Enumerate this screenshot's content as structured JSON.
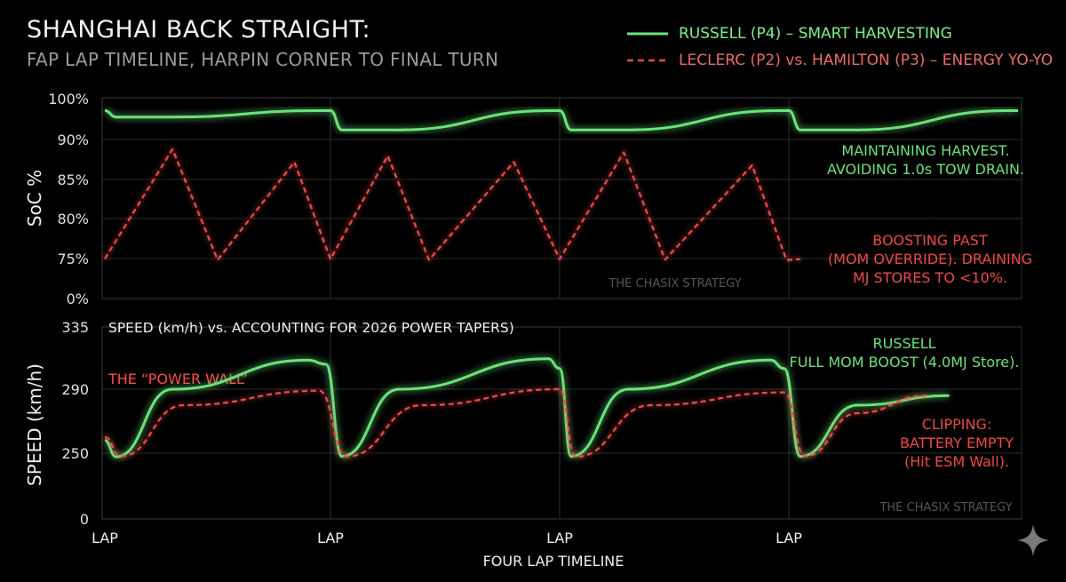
{
  "header": {
    "title": "SHANGHAI BACK STRAIGHT:",
    "subtitle": "FAP LAP TIMELINE, HARPIN CORNER TO FINAL TURN"
  },
  "legend": [
    {
      "label": "RUSSELL (P4) – SMART HARVESTING",
      "color": "#6be37a",
      "style": "solid"
    },
    {
      "label": "LECLERC (P2) vs. HAMILTON (P3) – ENERGY YO-YO",
      "color": "#f04848",
      "style": "dashed"
    }
  ],
  "chart_data": [
    {
      "type": "line",
      "panel": "top",
      "ylabel": "SoC %",
      "y_ticks": [
        "100%",
        "90%",
        "85%",
        "80%",
        "75%",
        "0%"
      ],
      "grid": true,
      "series": [
        {
          "name": "RUSSELL (P4) – SMART HARVESTING",
          "color": "#6be37a",
          "style": "solid",
          "points": [
            [
              0,
              98
            ],
            [
              0.05,
              97
            ],
            [
              0.3,
              97
            ],
            [
              0.95,
              98
            ],
            [
              1.0,
              98
            ],
            [
              1.05,
              95
            ],
            [
              1.3,
              95
            ],
            [
              1.95,
              98
            ],
            [
              2.0,
              98
            ],
            [
              2.05,
              95
            ],
            [
              2.3,
              95
            ],
            [
              2.95,
              98
            ],
            [
              3.0,
              98
            ],
            [
              3.05,
              95
            ],
            [
              3.3,
              95
            ],
            [
              3.95,
              98
            ],
            [
              4.0,
              98
            ]
          ]
        },
        {
          "name": "LECLERC (P2) vs. HAMILTON (P3) – ENERGY YO-YO",
          "color": "#f04848",
          "style": "dashed",
          "points": [
            [
              0,
              74.5
            ],
            [
              0.3,
              92
            ],
            [
              0.5,
              72.5
            ],
            [
              0.84,
              90
            ],
            [
              1.0,
              74
            ],
            [
              1.25,
              91
            ],
            [
              1.43,
              72.5
            ],
            [
              1.8,
              90
            ],
            [
              2.0,
              74
            ],
            [
              2.28,
              91.5
            ],
            [
              2.46,
              73
            ],
            [
              2.84,
              89.5
            ],
            [
              2.99,
              72
            ],
            [
              3.05,
              74
            ]
          ]
        }
      ],
      "annotations": [
        {
          "lines": [
            "MAINTAINING HARVEST.",
            "AVOIDING 1.0s TOW DRAIN."
          ],
          "color": "#6be37a"
        },
        {
          "lines": [
            "BOOSTING PAST",
            "(MOM OVERRIDE). DRAINING",
            "MJ STORES TO <10%."
          ],
          "color": "#f04848"
        }
      ],
      "watermark": "THE CHASIX STRATEGY"
    },
    {
      "type": "line",
      "panel": "bottom",
      "title": "SPEED (km/h) vs. ACCOUNTING FOR 2026 POWER TAPERS)",
      "ylabel": "SPEED (km/h)",
      "xlabel": "FOUR LAP TIMELINE",
      "x_ticks": [
        "LAP",
        "LAP",
        "LAP",
        "LAP"
      ],
      "y_ticks": [
        "335",
        "290",
        "250",
        "0"
      ],
      "grid": true,
      "power_wall": {
        "label": "THE “POWER WALL”",
        "value": 286,
        "color": "#ff4a4a"
      },
      "series": [
        {
          "name": "RUSSELL",
          "color": "#6be37a",
          "style": "solid",
          "points": [
            [
              0,
              258
            ],
            [
              0.05,
              236
            ],
            [
              0.3,
              290
            ],
            [
              0.9,
              311
            ],
            [
              0.98,
              308
            ],
            [
              1.05,
              238
            ],
            [
              1.3,
              290
            ],
            [
              1.95,
              312
            ],
            [
              2.0,
              305
            ],
            [
              2.05,
              238
            ],
            [
              2.3,
              290
            ],
            [
              2.92,
              311
            ],
            [
              2.98,
              305
            ],
            [
              3.05,
              238
            ],
            [
              3.3,
              280
            ],
            [
              3.7,
              286
            ]
          ]
        },
        {
          "name": "LECLERC / HAMILTON",
          "color": "#f04848",
          "style": "dashed",
          "points": [
            [
              0,
              260
            ],
            [
              0.07,
              238
            ],
            [
              0.35,
              280
            ],
            [
              0.95,
              289
            ],
            [
              1.07,
              237
            ],
            [
              1.4,
              280
            ],
            [
              2.0,
              290
            ],
            [
              2.07,
              236
            ],
            [
              2.4,
              280
            ],
            [
              2.98,
              288
            ],
            [
              3.07,
              238
            ],
            [
              3.3,
              275
            ],
            [
              3.6,
              286
            ]
          ]
        }
      ],
      "annotations": [
        {
          "lines": [
            "RUSSELL",
            "FULL MOM BOOST (4.0MJ Store)."
          ],
          "color": "#6be37a"
        },
        {
          "lines": [
            "CLIPPING:",
            "BATTERY EMPTY",
            "(Hit ESM Wall)."
          ],
          "color": "#f04848"
        }
      ],
      "watermark": "THE CHASIX STRATEGY"
    }
  ],
  "logo": {
    "icon": "sparkle-icon"
  }
}
